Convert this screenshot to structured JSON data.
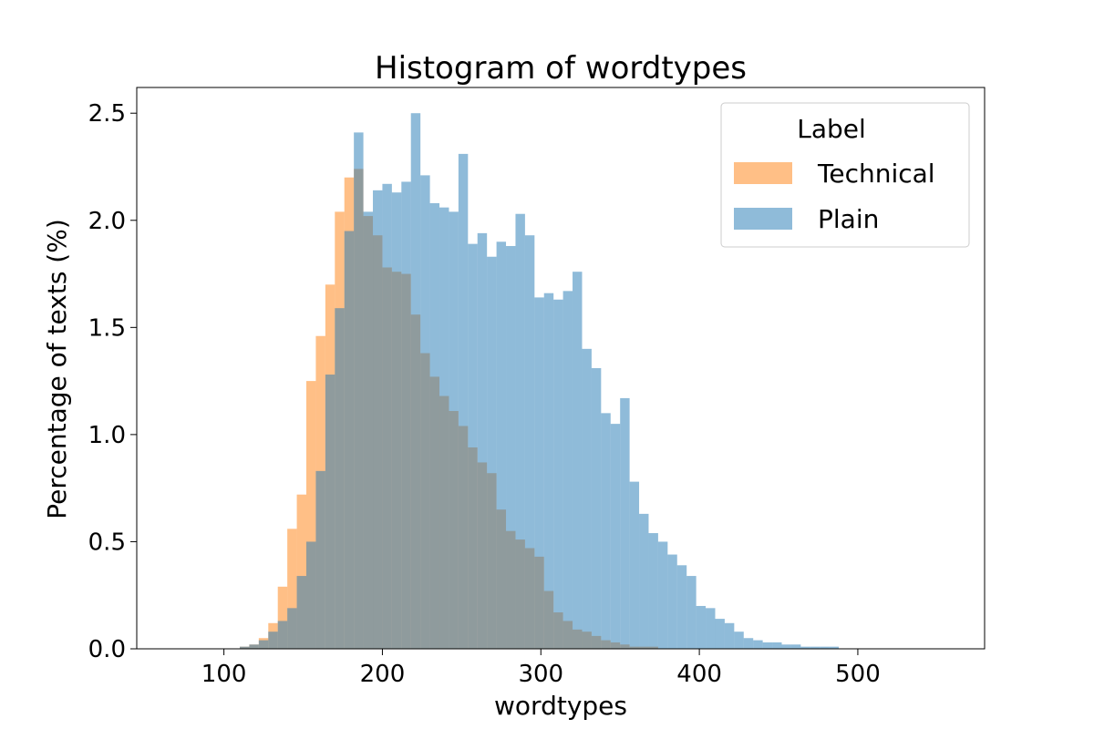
{
  "chart_data": {
    "type": "bar",
    "title": "Histogram of wordtypes",
    "xlabel": "wordtypes",
    "ylabel": "Percentage of texts (%)",
    "xlim": [
      45,
      580
    ],
    "ylim": [
      0,
      2.62
    ],
    "xticks": [
      100,
      200,
      300,
      400,
      500
    ],
    "yticks": [
      0.0,
      0.5,
      1.0,
      1.5,
      2.0,
      2.5
    ],
    "xtick_labels": [
      "100",
      "200",
      "300",
      "400",
      "500"
    ],
    "ytick_labels": [
      "0.0",
      "0.5",
      "1.0",
      "1.5",
      "2.0",
      "2.5"
    ],
    "bin_start": 92,
    "bin_width": 6,
    "grid": false,
    "legend": {
      "title": "Label",
      "placement": "top-right",
      "entries": [
        "Technical",
        "Plain"
      ]
    },
    "series": [
      {
        "name": "Technical",
        "color": "#ff7f0e",
        "values": [
          0.0,
          0.0,
          0.0,
          0.01,
          0.02,
          0.05,
          0.12,
          0.29,
          0.56,
          0.72,
          1.25,
          1.46,
          1.7,
          2.04,
          2.2,
          2.24,
          2.02,
          1.93,
          1.78,
          1.76,
          1.75,
          1.56,
          1.38,
          1.27,
          1.18,
          1.11,
          1.04,
          0.94,
          0.87,
          0.82,
          0.65,
          0.55,
          0.51,
          0.47,
          0.43,
          0.27,
          0.17,
          0.13,
          0.09,
          0.08,
          0.06,
          0.04,
          0.03,
          0.02,
          0.01,
          0.01,
          0.01,
          0.0,
          0.0,
          0.0
        ]
      },
      {
        "name": "Plain",
        "color": "#1f77b4",
        "values": [
          0.0,
          0.0,
          0.0,
          0.01,
          0.02,
          0.04,
          0.08,
          0.13,
          0.19,
          0.34,
          0.5,
          0.83,
          1.28,
          1.59,
          1.95,
          2.41,
          2.04,
          2.14,
          2.17,
          2.13,
          2.18,
          2.5,
          2.21,
          2.08,
          2.06,
          2.04,
          2.31,
          1.89,
          1.94,
          1.83,
          1.9,
          1.88,
          2.03,
          1.93,
          1.64,
          1.66,
          1.63,
          1.67,
          1.76,
          1.4,
          1.31,
          1.1,
          1.05,
          1.17,
          0.78,
          0.63,
          0.54,
          0.5,
          0.44,
          0.39,
          0.34,
          0.2,
          0.19,
          0.14,
          0.12,
          0.08,
          0.05,
          0.04,
          0.03,
          0.03,
          0.02,
          0.02,
          0.01,
          0.01,
          0.01,
          0.01,
          0.0,
          0.0,
          0.0,
          0.0,
          0.0,
          0.0,
          0.0,
          0.0,
          0.0
        ]
      }
    ]
  }
}
